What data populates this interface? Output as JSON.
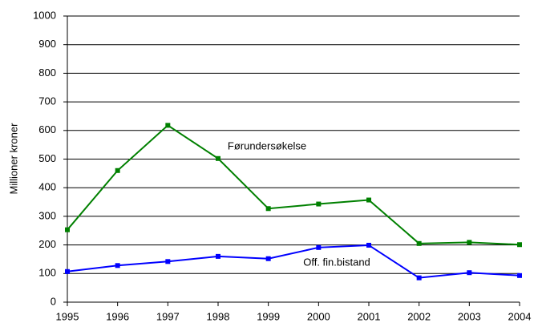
{
  "chart_data": {
    "type": "line",
    "y_label": "Millioner kroner",
    "x": [
      1995,
      1996,
      1997,
      1998,
      1999,
      2000,
      2001,
      2002,
      2003,
      2004
    ],
    "xlim": [
      1995,
      2004
    ],
    "xticks": [
      1995,
      1996,
      1997,
      1998,
      1999,
      2000,
      2001,
      2002,
      2003,
      2004
    ],
    "ylim": [
      0,
      1000
    ],
    "yticks": [
      0,
      100,
      200,
      300,
      400,
      500,
      600,
      700,
      800,
      900,
      1000
    ],
    "grid": true,
    "series": [
      {
        "name": "Førundersøkelse",
        "color": "#008000",
        "values": [
          253,
          460,
          618,
          502,
          327,
          343,
          357,
          205,
          209,
          201
        ]
      },
      {
        "name": "Off. fin.bistand",
        "color": "#0000ff",
        "values": [
          107,
          128,
          142,
          160,
          152,
          191,
          199,
          85,
          103,
          93
        ]
      }
    ]
  }
}
